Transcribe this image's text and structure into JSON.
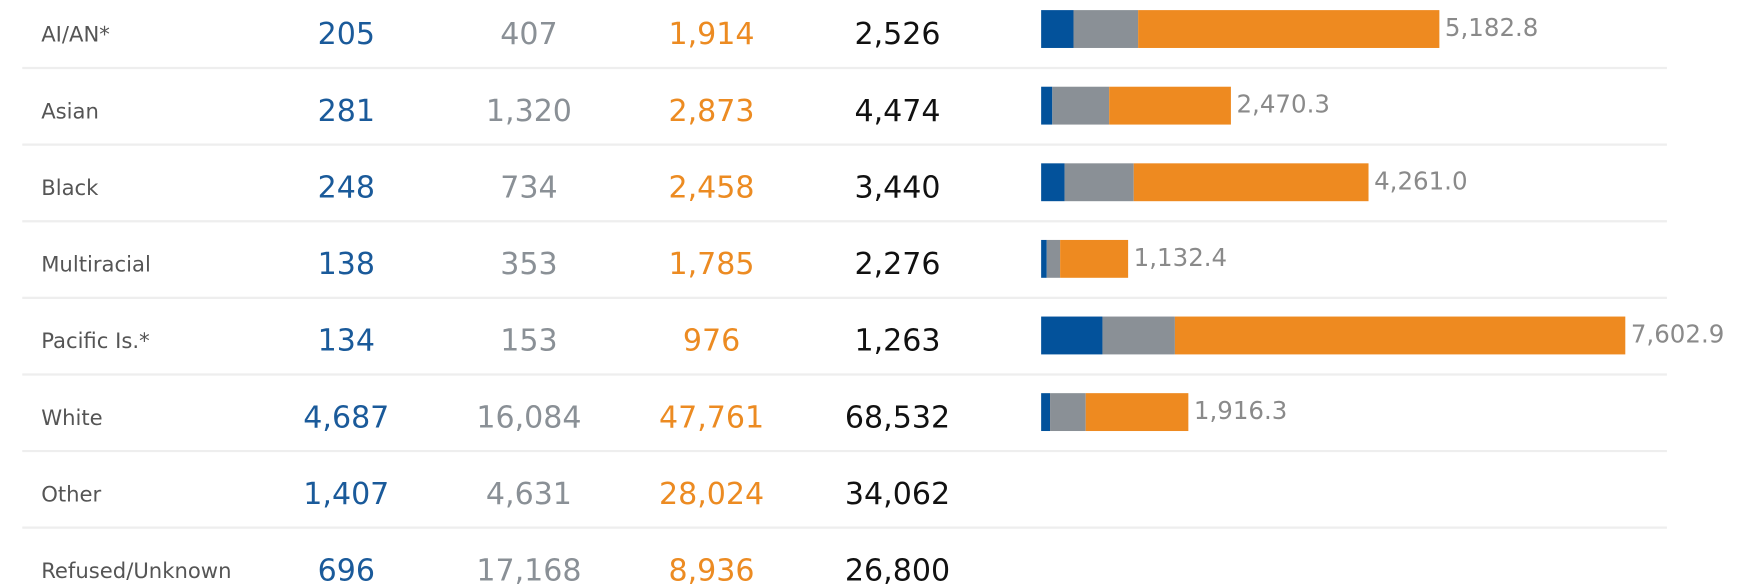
{
  "table": {
    "column_colors": [
      "#1a5a9a",
      "#8a9096",
      "#ec8b22",
      "#111111"
    ],
    "rows": [
      {
        "label": "AI/AN*",
        "cells": [
          "205",
          "407",
          "1,914",
          "2,526"
        ]
      },
      {
        "label": "Asian",
        "cells": [
          "281",
          "1,320",
          "2,873",
          "4,474"
        ]
      },
      {
        "label": "Black",
        "cells": [
          "248",
          "734",
          "2,458",
          "3,440"
        ]
      },
      {
        "label": "Multiracial",
        "cells": [
          "138",
          "353",
          "1,785",
          "2,276"
        ]
      },
      {
        "label": "Pacific Is.*",
        "cells": [
          "134",
          "153",
          "976",
          "1,263"
        ]
      },
      {
        "label": "White",
        "cells": [
          "4,687",
          "16,084",
          "47,761",
          "68,532"
        ]
      },
      {
        "label": "Other",
        "cells": [
          "1,407",
          "4,631",
          "28,024",
          "34,062"
        ]
      },
      {
        "label": "Refused/Unknown",
        "cells": [
          "696",
          "17,168",
          "8,936",
          "26,800"
        ]
      }
    ]
  },
  "bars": {
    "xlim": [
      0,
      8000
    ],
    "segment_colors": [
      "#03529b",
      "#8a9096",
      "#ee8a20"
    ],
    "rows": [
      {
        "segments": [
          421,
          841,
          3921
        ],
        "label": "5,182.8"
      },
      {
        "segments": [
          145,
          740,
          1585
        ],
        "label": "2,470.3"
      },
      {
        "segments": [
          305,
          900,
          3056
        ],
        "label": "4,261.0"
      },
      {
        "segments": [
          73,
          174,
          885
        ],
        "label": "1,132.4"
      },
      {
        "segments": [
          798,
          943,
          5862
        ],
        "label": "7,602.9"
      },
      {
        "segments": [
          116,
          464,
          1336
        ],
        "label": "1,916.3"
      }
    ]
  }
}
